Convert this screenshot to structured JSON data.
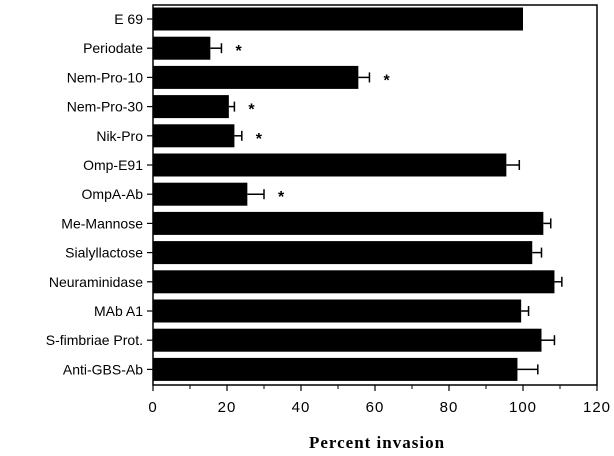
{
  "chart_data": {
    "type": "bar",
    "orientation": "horizontal",
    "categories": [
      "E 69",
      "Periodate",
      "Nem-Pro-10",
      "Nem-Pro-30",
      "Nik-Pro",
      "Omp-E91",
      "OmpA-Ab",
      "Me-Mannose",
      "Sialyllactose",
      "Neuraminidase",
      "MAb A1",
      "S-fimbriae Prot.",
      "Anti-GBS-Ab"
    ],
    "values": [
      100,
      15.5,
      55.5,
      20.5,
      22,
      95.5,
      25.5,
      105.5,
      102.5,
      108.5,
      99.5,
      105,
      98.5
    ],
    "errors": [
      0,
      3,
      3,
      1.5,
      2,
      3.5,
      4.5,
      2,
      2.5,
      2,
      2,
      3.5,
      5.5
    ],
    "significant": [
      false,
      true,
      true,
      true,
      true,
      false,
      true,
      false,
      false,
      false,
      false,
      false,
      false
    ],
    "significance_marker": "*",
    "xlabel": "Percent invasion",
    "ylabel": "",
    "xlim": [
      0,
      120
    ],
    "ticks": [
      0,
      20,
      40,
      60,
      80,
      100,
      120
    ],
    "grid": false,
    "bar_color": "#000000"
  }
}
